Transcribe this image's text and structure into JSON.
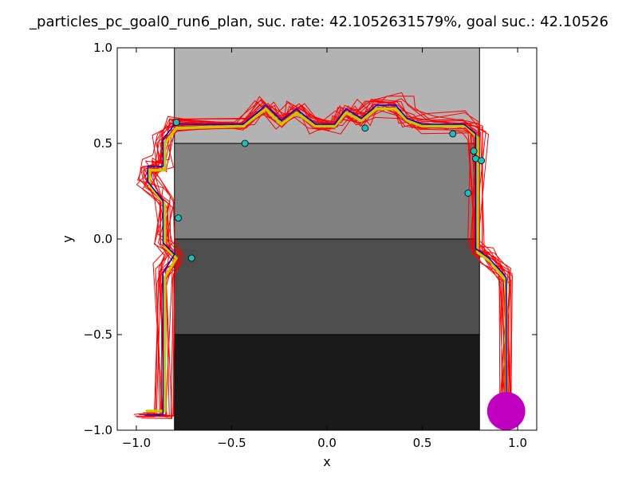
{
  "chart_data": {
    "type": "line",
    "title": "_particles_pc_goal0_run6_plan, suc. rate: 42.1052631579%, goal suc.: 42.10526",
    "xlabel": "x",
    "ylabel": "y",
    "xlim": [
      -1.1,
      1.1
    ],
    "ylim": [
      -1.0,
      1.0
    ],
    "xticks": [
      -1.0,
      -0.5,
      0.0,
      0.5,
      1.0
    ],
    "xtick_labels": [
      "−1.0",
      "−0.5",
      "0.0",
      "0.5",
      "1.0"
    ],
    "yticks": [
      -1.0,
      -0.5,
      0.0,
      0.5,
      1.0
    ],
    "ytick_labels": [
      "−1.0",
      "−0.5",
      "0.0",
      "0.5",
      "1.0"
    ],
    "grid": false,
    "legend": false,
    "regions": [
      {
        "x0": -0.8,
        "x1": 0.8,
        "y0": 0.5,
        "y1": 1.0,
        "color": "#b3b3b3"
      },
      {
        "x0": -0.8,
        "x1": 0.8,
        "y0": 0.0,
        "y1": 0.5,
        "color": "#808080"
      },
      {
        "x0": -0.8,
        "x1": 0.8,
        "y0": -0.5,
        "y1": 0.0,
        "color": "#4d4d4d"
      },
      {
        "x0": -0.8,
        "x1": 0.8,
        "y0": -1.0,
        "y1": -0.5,
        "color": "#1a1a1a"
      }
    ],
    "goal": {
      "x": 0.94,
      "y": -0.9,
      "r": 0.1,
      "color": "#c000c0"
    },
    "particle_color": "#ff0000",
    "plan": {
      "color": "#0000cc",
      "points": [
        [
          0.94,
          -0.91
        ],
        [
          0.94,
          -0.2
        ],
        [
          0.85,
          -0.1
        ],
        [
          0.78,
          -0.05
        ],
        [
          0.78,
          0.55
        ],
        [
          0.72,
          0.6
        ],
        [
          0.5,
          0.6
        ],
        [
          0.42,
          0.63
        ],
        [
          0.36,
          0.7
        ],
        [
          0.26,
          0.7
        ],
        [
          0.18,
          0.63
        ],
        [
          0.1,
          0.68
        ],
        [
          0.04,
          0.6
        ],
        [
          -0.06,
          0.6
        ],
        [
          -0.16,
          0.68
        ],
        [
          -0.24,
          0.62
        ],
        [
          -0.32,
          0.7
        ],
        [
          -0.44,
          0.6
        ],
        [
          -0.8,
          0.6
        ],
        [
          -0.86,
          0.52
        ],
        [
          -0.86,
          0.38
        ],
        [
          -0.94,
          0.38
        ],
        [
          -0.94,
          0.3
        ],
        [
          -0.86,
          0.2
        ],
        [
          -0.86,
          -0.02
        ],
        [
          -0.8,
          -0.08
        ],
        [
          -0.86,
          -0.18
        ],
        [
          -0.86,
          -0.92
        ],
        [
          -0.96,
          -0.92
        ]
      ]
    },
    "mean_path": {
      "color": "#c8c800",
      "points": [
        [
          0.94,
          -0.9
        ],
        [
          0.94,
          -0.22
        ],
        [
          0.86,
          -0.12
        ],
        [
          0.79,
          -0.07
        ],
        [
          0.79,
          0.53
        ],
        [
          0.73,
          0.59
        ],
        [
          0.5,
          0.59
        ],
        [
          0.42,
          0.62
        ],
        [
          0.36,
          0.68
        ],
        [
          0.26,
          0.68
        ],
        [
          0.18,
          0.62
        ],
        [
          0.1,
          0.66
        ],
        [
          0.04,
          0.59
        ],
        [
          -0.06,
          0.59
        ],
        [
          -0.16,
          0.66
        ],
        [
          -0.24,
          0.6
        ],
        [
          -0.32,
          0.68
        ],
        [
          -0.44,
          0.59
        ],
        [
          -0.79,
          0.58
        ],
        [
          -0.85,
          0.5
        ],
        [
          -0.85,
          0.36
        ],
        [
          -0.93,
          0.36
        ],
        [
          -0.93,
          0.28
        ],
        [
          -0.85,
          0.18
        ],
        [
          -0.85,
          -0.04
        ],
        [
          -0.79,
          -0.1
        ],
        [
          -0.85,
          -0.2
        ],
        [
          -0.85,
          -0.9
        ],
        [
          -0.95,
          -0.9
        ]
      ]
    },
    "endpoints": {
      "color": "#22bbbb",
      "points": [
        [
          -0.79,
          0.61
        ],
        [
          -0.43,
          0.5
        ],
        [
          -0.78,
          0.11
        ],
        [
          -0.71,
          -0.1
        ],
        [
          0.2,
          0.58
        ],
        [
          0.66,
          0.55
        ],
        [
          0.77,
          0.46
        ],
        [
          0.78,
          0.42
        ],
        [
          0.81,
          0.41
        ],
        [
          0.74,
          0.24
        ]
      ]
    }
  }
}
